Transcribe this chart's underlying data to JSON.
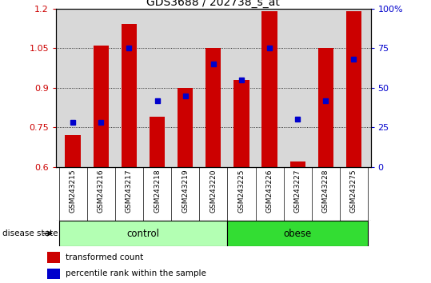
{
  "title": "GDS3688 / 202738_s_at",
  "samples": [
    "GSM243215",
    "GSM243216",
    "GSM243217",
    "GSM243218",
    "GSM243219",
    "GSM243220",
    "GSM243225",
    "GSM243226",
    "GSM243227",
    "GSM243228",
    "GSM243275"
  ],
  "red_values": [
    0.72,
    1.06,
    1.14,
    0.79,
    0.9,
    1.05,
    0.93,
    1.19,
    0.62,
    1.05,
    1.19
  ],
  "blue_values": [
    28,
    28,
    75,
    42,
    45,
    65,
    55,
    75,
    30,
    42,
    68
  ],
  "ylim_left": [
    0.6,
    1.2
  ],
  "ylim_right": [
    0,
    100
  ],
  "yticks_left": [
    0.6,
    0.75,
    0.9,
    1.05,
    1.2
  ],
  "yticks_right": [
    0,
    25,
    50,
    75,
    100
  ],
  "ytick_labels_right": [
    "0",
    "25",
    "50",
    "75",
    "100%"
  ],
  "control_indices": [
    0,
    1,
    2,
    3,
    4,
    5
  ],
  "obese_indices": [
    6,
    7,
    8,
    9,
    10
  ],
  "control_color": "#b3ffb3",
  "obese_color": "#33dd33",
  "bar_color": "#cc0000",
  "marker_color": "#0000cc",
  "bar_bottom": 0.6,
  "legend_red_label": "transformed count",
  "legend_blue_label": "percentile rank within the sample",
  "disease_state_label": "disease state",
  "control_label": "control",
  "obese_label": "obese",
  "grid_color": "black",
  "axes_bg": "#d8d8d8",
  "bar_width": 0.55
}
